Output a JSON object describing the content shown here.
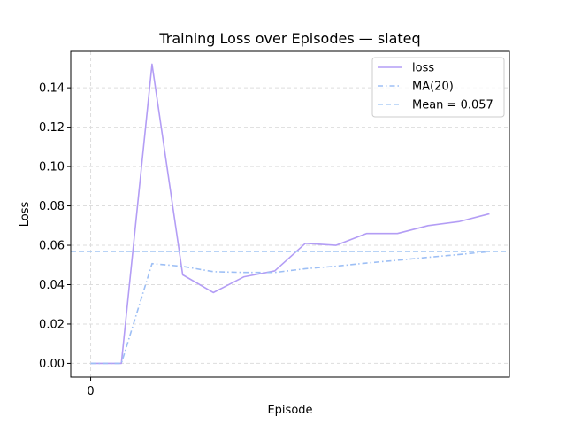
{
  "chart_data": {
    "type": "line",
    "title": "Training Loss over Episodes — slateq",
    "xlabel": "Episode",
    "ylabel": "Loss",
    "x": [
      0,
      1,
      2,
      3,
      4,
      5,
      6,
      7,
      8,
      9,
      10,
      11,
      12,
      13
    ],
    "x_ticks": [
      0
    ],
    "xlim": [
      -0.65,
      13.65
    ],
    "ylim": [
      -0.007,
      0.1585
    ],
    "y_ticks": [
      0.0,
      0.02,
      0.04,
      0.06,
      0.08,
      0.1,
      0.12,
      0.14
    ],
    "y_tick_labels": [
      "0.00",
      "0.02",
      "0.04",
      "0.06",
      "0.08",
      "0.10",
      "0.12",
      "0.14"
    ],
    "grid": true,
    "legend_position": "top-right",
    "series": [
      {
        "name": "loss",
        "style": "solid",
        "color": "#b39df5",
        "values": [
          0.0,
          0.0,
          0.152,
          0.045,
          0.036,
          0.044,
          0.047,
          0.061,
          0.06,
          0.066,
          0.066,
          0.07,
          0.072,
          0.076
        ]
      },
      {
        "name": "MA(20)",
        "style": "dashdot",
        "color": "#9dbff5",
        "values": [
          0.0,
          0.0,
          0.0507,
          0.0493,
          0.0466,
          0.0462,
          0.0462,
          0.0481,
          0.0494,
          0.051,
          0.0524,
          0.0539,
          0.0553,
          0.0568
        ]
      },
      {
        "name": "Mean = 0.057",
        "style": "dashed",
        "color": "#aecdf5",
        "constant": 0.0568
      }
    ]
  }
}
